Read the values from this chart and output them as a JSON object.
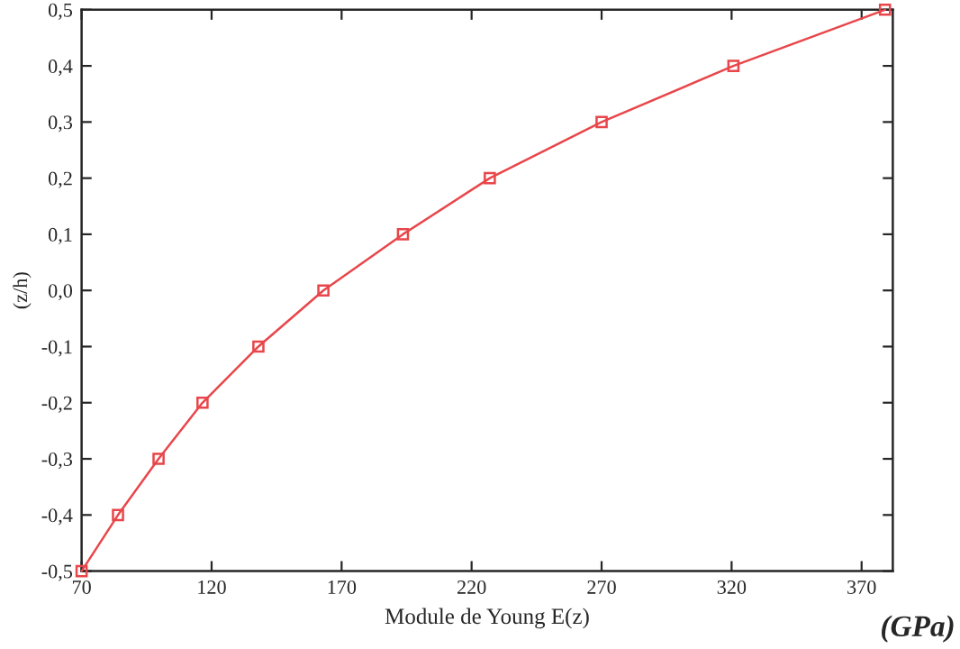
{
  "chart_data": {
    "type": "line",
    "xlabel": "Module de Young E(z)",
    "ylabel": "(z/h)",
    "annotations": [
      "(GPa)"
    ],
    "series": [
      {
        "color": "#e8464a",
        "x": [
          70,
          84,
          99.6,
          116.5,
          138,
          163,
          193.6,
          227,
          270,
          320.7,
          379
        ],
        "values": [
          -0.5,
          -0.4,
          -0.3,
          -0.2,
          -0.1,
          0.0,
          0.1,
          0.2,
          0.3,
          0.4,
          0.5
        ]
      }
    ],
    "marker": "square",
    "line_style": "solid",
    "grid": false,
    "legend": false,
    "xlim": [
      70,
      382
    ],
    "xticks": [
      70,
      120,
      170,
      220,
      270,
      320,
      370
    ],
    "ylim": [
      -0.5,
      0.5
    ],
    "yticks": [
      {
        "value": -0.5,
        "label": "-0,5"
      },
      {
        "value": -0.4,
        "label": "-0,4"
      },
      {
        "value": -0.3,
        "label": "-0,3"
      },
      {
        "value": -0.2,
        "label": "-0,2"
      },
      {
        "value": -0.1,
        "label": "-0,1"
      },
      {
        "value": 0.0,
        "label": "0,0"
      },
      {
        "value": 0.1,
        "label": "0,1"
      },
      {
        "value": 0.2,
        "label": "0,2"
      },
      {
        "value": 0.3,
        "label": "0,3"
      },
      {
        "value": 0.4,
        "label": "0,4"
      },
      {
        "value": 0.5,
        "label": "0,5"
      }
    ]
  }
}
